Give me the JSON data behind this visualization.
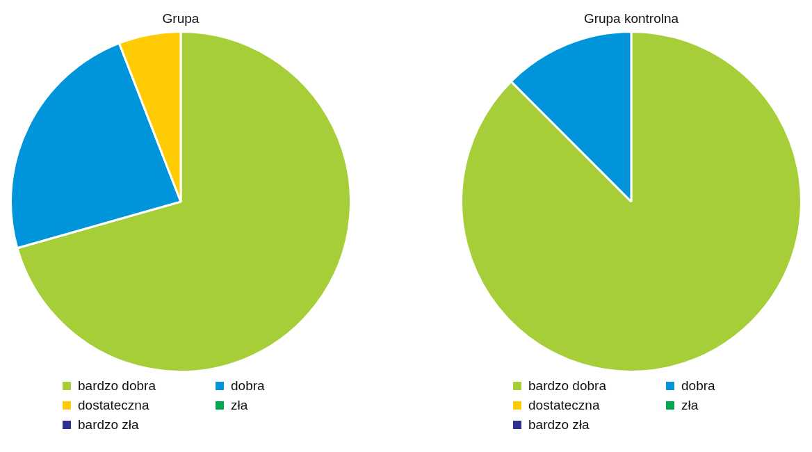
{
  "chart_data": [
    {
      "type": "pie",
      "title": "Grupa",
      "categories": [
        "bardzo dobra",
        "dobra",
        "dostateczna",
        "zła",
        "bardzo zła"
      ],
      "values": [
        70.6,
        23.5,
        5.9,
        0,
        0
      ],
      "colors": [
        "#a6ce39",
        "#0095da",
        "#ffcb05",
        "#00a651",
        "#2e3192"
      ],
      "legend": "bottom"
    },
    {
      "type": "pie",
      "title": "Grupa kontrolna",
      "categories": [
        "bardzo dobra",
        "dobra",
        "dostateczna",
        "zła",
        "bardzo zła"
      ],
      "values": [
        87.5,
        12.5,
        0,
        0,
        0
      ],
      "colors": [
        "#a6ce39",
        "#0095da",
        "#ffcb05",
        "#00a651",
        "#2e3192"
      ],
      "legend": "bottom"
    }
  ]
}
